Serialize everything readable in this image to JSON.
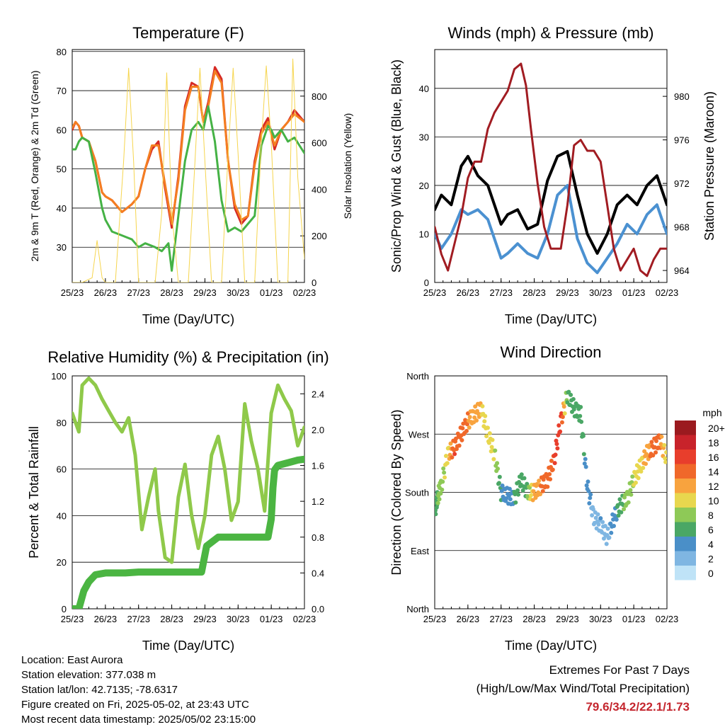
{
  "x_ticks": [
    "25/23",
    "26/23",
    "27/23",
    "28/23",
    "29/23",
    "30/23",
    "01/23",
    "02/23"
  ],
  "x_label": "Time (Day/UTC)",
  "chart_data": [
    {
      "type": "line",
      "title": "Temperature (F)",
      "ylabel": "2m & 9m T (Red, Orange) & 2m Td (Green)",
      "y2label": "Solar Insolation (Yellow)",
      "ylim": [
        21,
        80.5
      ],
      "y2lim": [
        0,
        1000
      ],
      "yticks": [
        30,
        40,
        50,
        60,
        70,
        80
      ],
      "y2ticks": [
        0,
        200,
        400,
        600,
        800
      ],
      "series": [
        {
          "color": "#d62a24",
          "x": [
            0,
            0.1,
            0.2,
            0.3,
            0.5,
            0.7,
            0.9,
            1,
            1.2,
            1.5,
            1.8,
            2,
            2.2,
            2.4,
            2.6,
            2.8,
            3,
            3.2,
            3.4,
            3.6,
            3.8,
            3.95,
            4.1,
            4.3,
            4.5,
            4.7,
            4.9,
            5.1,
            5.3,
            5.5,
            5.7,
            5.9,
            6,
            6.1,
            6.3,
            6.5,
            6.7,
            7
          ],
          "y": [
            60,
            62,
            61,
            58,
            57,
            52,
            44,
            43,
            42,
            39,
            41,
            43,
            50,
            55,
            57,
            45,
            35,
            48,
            66,
            72,
            71,
            62,
            67,
            76,
            73,
            52,
            40,
            36,
            38,
            52,
            60,
            63,
            59,
            55,
            60,
            62,
            65,
            62
          ]
        },
        {
          "color": "#f47e21",
          "x": [
            0,
            0.1,
            0.2,
            0.3,
            0.5,
            0.7,
            0.9,
            1,
            1.2,
            1.5,
            1.8,
            2,
            2.2,
            2.4,
            2.6,
            2.8,
            3,
            3.2,
            3.4,
            3.6,
            3.8,
            3.95,
            4.1,
            4.3,
            4.5,
            4.7,
            4.9,
            5.1,
            5.3,
            5.5,
            5.7,
            5.9,
            6,
            6.1,
            6.3,
            6.5,
            6.7,
            7
          ],
          "y": [
            60.5,
            62,
            61,
            58,
            57,
            52,
            44,
            43,
            42,
            39,
            41,
            43,
            50,
            56,
            56,
            46,
            36,
            47,
            65,
            71,
            71,
            62,
            66,
            75,
            72,
            52,
            41,
            37,
            38,
            51,
            59,
            62,
            59,
            56,
            60,
            62,
            64,
            62
          ]
        },
        {
          "color": "#45b245",
          "x": [
            0,
            0.1,
            0.2,
            0.3,
            0.5,
            0.7,
            0.9,
            1,
            1.2,
            1.5,
            1.8,
            2,
            2.2,
            2.5,
            2.7,
            2.9,
            3,
            3.2,
            3.4,
            3.6,
            3.8,
            3.95,
            4.1,
            4.3,
            4.5,
            4.7,
            4.9,
            5.1,
            5.3,
            5.5,
            5.7,
            5.9,
            6,
            6.1,
            6.3,
            6.5,
            6.7,
            7
          ],
          "y": [
            55,
            55,
            57,
            58,
            57,
            49,
            40,
            37,
            34,
            33,
            32,
            30,
            31,
            30,
            29,
            31,
            24,
            38,
            52,
            60,
            62,
            60,
            66,
            57,
            42,
            34,
            35,
            34,
            36,
            38,
            56,
            61,
            60,
            58,
            60,
            57,
            58,
            54
          ]
        },
        {
          "color": "#f6d54e",
          "x": [
            0,
            0.3,
            0.6,
            0.75,
            0.9,
            1.0,
            1.3,
            1.55,
            1.7,
            1.85,
            2.0,
            2.2,
            2.5,
            2.7,
            2.85,
            3.0,
            3.2,
            3.5,
            3.7,
            3.85,
            4.0,
            4.2,
            4.5,
            4.7,
            4.85,
            5.0,
            5.2,
            5.5,
            5.7,
            5.85,
            6.0,
            6.2,
            6.5,
            6.65,
            6.8,
            7
          ],
          "y": [
            0,
            0,
            20,
            180,
            20,
            0,
            0,
            520,
            920,
            520,
            0,
            0,
            0,
            300,
            900,
            300,
            0,
            0,
            520,
            920,
            520,
            0,
            0,
            550,
            920,
            550,
            0,
            0,
            600,
            930,
            600,
            0,
            0,
            960,
            450,
            100
          ]
        }
      ]
    },
    {
      "type": "line",
      "title": "Winds (mph) & Pressure (mb)",
      "ylabel": "Sonic/Prop Wind & Gust (Blue, Black)",
      "y2label": "Station Pressure (Maroon)",
      "ylim": [
        0,
        48
      ],
      "y2lim": [
        962.9,
        984.3
      ],
      "yticks": [
        0,
        10,
        20,
        30,
        40
      ],
      "y2ticks": [
        964,
        968,
        972,
        976,
        980
      ],
      "series": [
        {
          "color": "#4b91d1",
          "x": [
            0,
            0.2,
            0.5,
            0.8,
            1.0,
            1.3,
            1.6,
            2.0,
            2.2,
            2.5,
            2.8,
            3.1,
            3.4,
            3.7,
            4.0,
            4.3,
            4.6,
            4.9,
            5.2,
            5.5,
            5.8,
            6.1,
            6.4,
            6.7,
            7
          ],
          "y": [
            10,
            7,
            10,
            15,
            14,
            15,
            13,
            5,
            6,
            8,
            6,
            5,
            10,
            18,
            20,
            9,
            4,
            2,
            5,
            8,
            12,
            10,
            14,
            16,
            10
          ]
        },
        {
          "color": "#000000",
          "x": [
            0,
            0.2,
            0.5,
            0.8,
            1.0,
            1.3,
            1.6,
            2.0,
            2.2,
            2.5,
            2.8,
            3.1,
            3.4,
            3.7,
            4.0,
            4.3,
            4.6,
            4.9,
            5.2,
            5.5,
            5.8,
            6.1,
            6.4,
            6.7,
            7
          ],
          "y": [
            15,
            18,
            16,
            24,
            26,
            22,
            20,
            12,
            14,
            15,
            11,
            12,
            21,
            26,
            27,
            18,
            10,
            6,
            10,
            16,
            18,
            16,
            20,
            22,
            16
          ]
        },
        {
          "color": "#a11c22",
          "x": [
            0,
            0.2,
            0.4,
            0.6,
            0.8,
            1.0,
            1.2,
            1.4,
            1.6,
            1.8,
            2.0,
            2.2,
            2.4,
            2.6,
            2.75,
            2.9,
            3.1,
            3.3,
            3.5,
            3.8,
            4.0,
            4.2,
            4.4,
            4.6,
            4.8,
            5.0,
            5.2,
            5.4,
            5.6,
            5.8,
            6.0,
            6.2,
            6.4,
            6.6,
            6.8,
            7
          ],
          "y": [
            968,
            965.5,
            964,
            966.5,
            969,
            972.5,
            974,
            974,
            977,
            978.5,
            979.5,
            980.5,
            982.5,
            983,
            981,
            977,
            972,
            968,
            966,
            966,
            970,
            975.5,
            976,
            975,
            975,
            974,
            970,
            966,
            964,
            965,
            966,
            964,
            963.5,
            965,
            966,
            966
          ]
        }
      ]
    },
    {
      "type": "line",
      "title": "Relative Humidity (%) & Precipitation (in)",
      "ylabel": "Percent & Total Rainfall",
      "ylim": [
        0,
        100
      ],
      "y2lim": [
        0,
        2.6
      ],
      "yticks": [
        0,
        20,
        40,
        60,
        80,
        100
      ],
      "y2ticks": [
        "0.0",
        "0.4",
        "0.8",
        "1.2",
        "1.6",
        "2.0",
        "2.4"
      ],
      "series": [
        {
          "color": "#8fc94a",
          "x": [
            0,
            0.1,
            0.2,
            0.3,
            0.5,
            0.7,
            0.9,
            1.1,
            1.3,
            1.5,
            1.7,
            1.9,
            2.0,
            2.1,
            2.3,
            2.5,
            2.6,
            2.8,
            3.0,
            3.2,
            3.4,
            3.6,
            3.8,
            4.0,
            4.2,
            4.4,
            4.6,
            4.8,
            5.0,
            5.2,
            5.4,
            5.6,
            5.8,
            6.0,
            6.2,
            6.4,
            6.6,
            6.8,
            7
          ],
          "y": [
            84,
            80,
            76,
            96,
            99,
            96,
            90,
            85,
            80,
            76,
            82,
            66,
            50,
            34,
            48,
            60,
            42,
            22,
            20,
            48,
            62,
            40,
            26,
            40,
            66,
            74,
            60,
            38,
            46,
            88,
            72,
            60,
            42,
            84,
            96,
            90,
            85,
            70,
            78
          ]
        },
        {
          "color": "#4bb542",
          "x": [
            0,
            0.2,
            0.35,
            0.5,
            0.7,
            1.0,
            1.3,
            1.6,
            2.0,
            2.4,
            2.8,
            3.2,
            3.6,
            3.9,
            4.05,
            4.4,
            4.8,
            5.2,
            5.6,
            5.9,
            6.0,
            6.05,
            6.1,
            6.2,
            6.4,
            6.6,
            6.8,
            7
          ],
          "y": [
            0,
            0,
            0.2,
            0.3,
            0.38,
            0.4,
            0.4,
            0.4,
            0.41,
            0.41,
            0.41,
            0.41,
            0.41,
            0.41,
            0.7,
            0.8,
            0.8,
            0.8,
            0.8,
            0.8,
            1.0,
            1.35,
            1.55,
            1.6,
            1.62,
            1.64,
            1.66,
            1.67
          ]
        }
      ]
    },
    {
      "type": "scatter",
      "title": "Wind Direction",
      "ylabel": "Direction (Colored By Speed)",
      "ylim": [
        0,
        360
      ],
      "yticklabels": [
        "North",
        "East",
        "South",
        "West",
        "North"
      ],
      "colorbar_title": "mph",
      "colorbar_labels": [
        "20+",
        "18",
        "16",
        "14",
        "12",
        "10",
        "8",
        "6",
        "4",
        "2",
        "0"
      ],
      "colorbar_colors": [
        "#9b1a1f",
        "#c8232b",
        "#e83e2c",
        "#f0682a",
        "#f8a33e",
        "#e8d74e",
        "#8ec957",
        "#4aa765",
        "#4a8fc8",
        "#7fb6e2",
        "#bfe3f7"
      ],
      "series": [
        {
          "x": [
            0,
            0.1,
            0.2,
            0.4,
            0.6,
            0.8,
            1.0,
            1.2,
            1.4,
            1.6,
            1.8,
            2.0,
            2.2,
            2.4,
            2.6,
            2.8,
            3.0,
            3.2,
            3.4,
            3.6,
            3.8,
            4.0,
            4.2,
            4.4,
            4.6,
            4.8,
            5.0,
            5.2,
            5.4,
            5.6,
            5.8,
            6.0,
            6.2,
            6.4,
            6.6,
            6.8,
            7
          ],
          "y": [
            150,
            175,
            190,
            240,
            250,
            270,
            290,
            300,
            310,
            270,
            240,
            180,
            175,
            170,
            200,
            180,
            180,
            190,
            200,
            230,
            290,
            330,
            310,
            300,
            190,
            140,
            130,
            110,
            140,
            160,
            170,
            200,
            220,
            240,
            250,
            260,
            230
          ],
          "speed": [
            6,
            7,
            8,
            10,
            15,
            14,
            13,
            12,
            11,
            10,
            9,
            5,
            4,
            5,
            6,
            7,
            12,
            13,
            14,
            15,
            16,
            6,
            5,
            6,
            4,
            2,
            3,
            2,
            4,
            6,
            8,
            9,
            10,
            12,
            14,
            13,
            9
          ]
        }
      ]
    }
  ],
  "info": {
    "location": "Location: East Aurora",
    "elevation": "Station elevation: 377.038 m",
    "latlon": "Station lat/lon: 42.7135; -78.6317",
    "created": "Figure created on Fri, 2025-05-02, at 23:43 UTC",
    "recent": "Most recent data timestamp: 2025/05/02 23:15:00"
  },
  "extremes": {
    "title": "Extremes For Past 7 Days",
    "subtitle": "(High/Low/Max Wind/Total Precipitation)",
    "values": "79.6/34.2/22.1/1.73"
  }
}
